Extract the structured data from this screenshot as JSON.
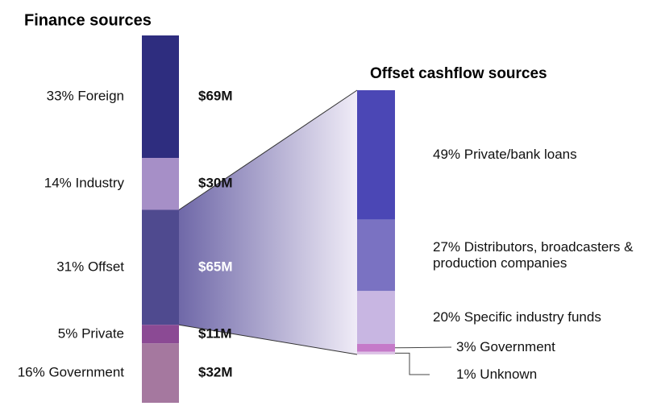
{
  "chart_data": [
    {
      "type": "stacked_bar",
      "title": "Finance sources",
      "labels": [
        "33% Foreign",
        "14% Industry",
        "31% Offset",
        "5% Private",
        "16% Government"
      ],
      "values": [
        33,
        14,
        31,
        5,
        16
      ],
      "amounts": [
        69,
        30,
        65,
        11,
        32
      ],
      "amount_labels": [
        "$69M",
        "$30M",
        "$65M",
        "$11M",
        "$32M"
      ],
      "colors": [
        "#2e2d7f",
        "#a68fc7",
        "#4f4a8f",
        "#8b4a94",
        "#a5789f"
      ],
      "expanded": 2
    },
    {
      "type": "stacked_bar",
      "title": "Offset cashflow sources",
      "labels": [
        "49% Private/bank loans",
        "27% Distributors, broadcasters & production companies",
        "20% Specific industry funds",
        "3% Government",
        "1% Unknown"
      ],
      "values": [
        49,
        27,
        20,
        3,
        1
      ],
      "colors": [
        "#4b47b5",
        "#7a72c2",
        "#c8b6e2",
        "#c57ac9",
        "#ddc4e6"
      ]
    }
  ]
}
